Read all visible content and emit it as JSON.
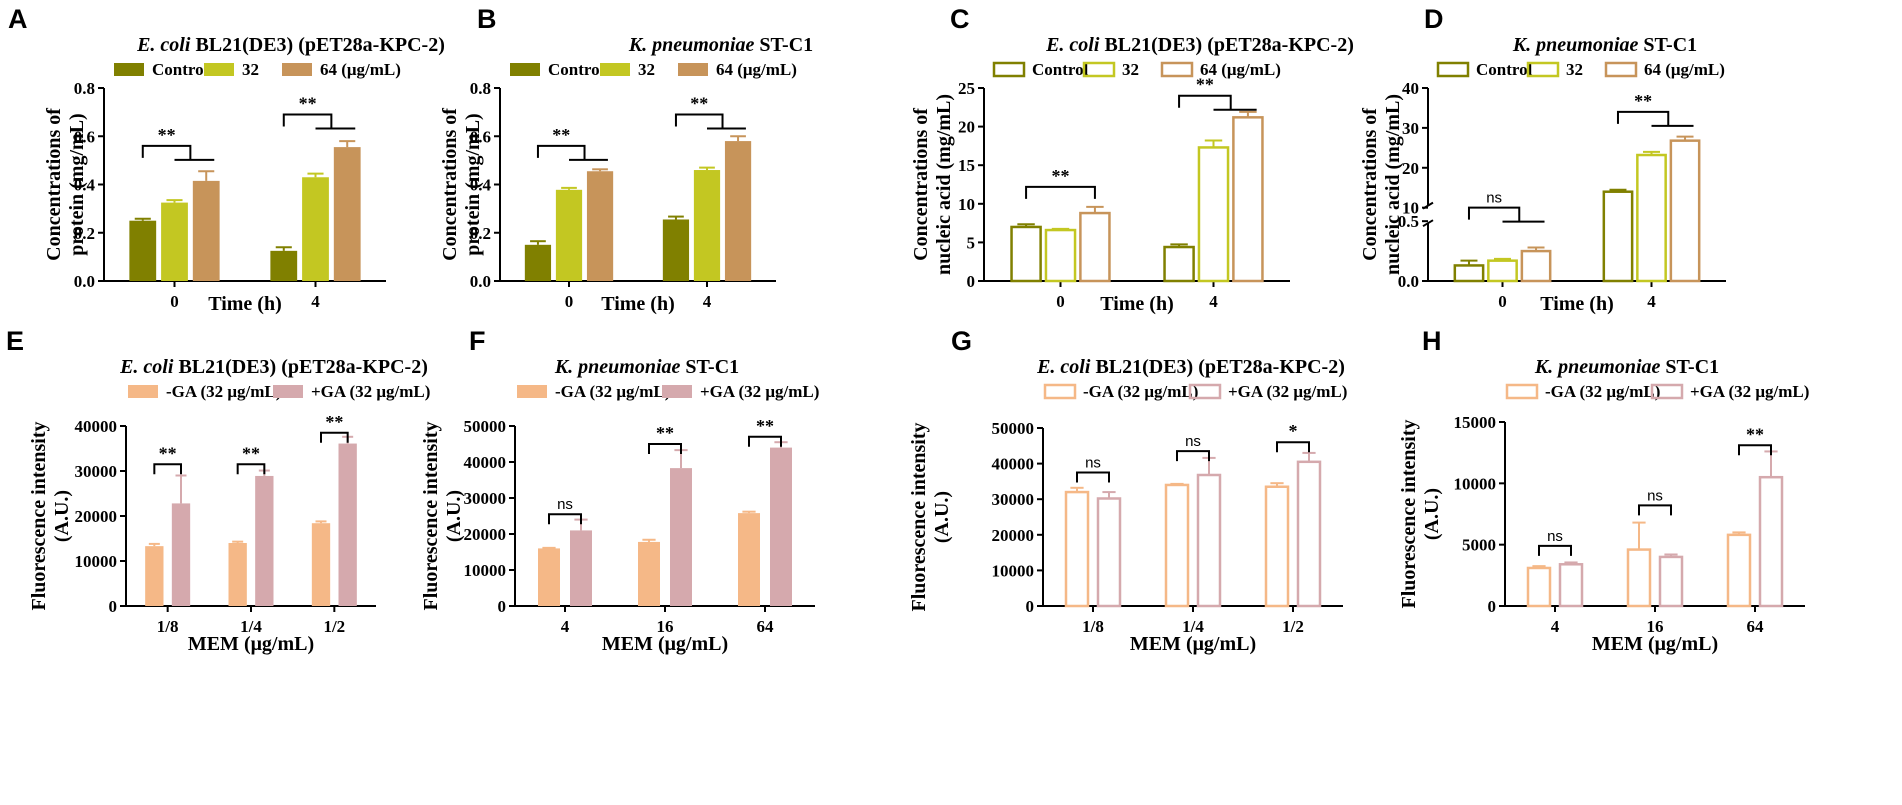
{
  "figure": {
    "colors": {
      "control": "#808000",
      "c32": "#c3c722",
      "c64": "#c7945a",
      "minus_ga": "#f5b887",
      "plus_ga": "#d5a9ad"
    }
  },
  "chart_data": [
    {
      "letter": "A",
      "type": "bar",
      "style": "filled",
      "title_italic": "E. coli",
      "title_rest": " BL21(DE3) (pET28a-KPC-2)",
      "legend": [
        "Control",
        "32",
        "64 (μg/mL)"
      ],
      "categories": [
        "0",
        "4"
      ],
      "series": [
        {
          "name": "Control",
          "values": [
            0.25,
            0.125
          ],
          "errors": [
            0.008,
            0.015
          ]
        },
        {
          "name": "32",
          "values": [
            0.325,
            0.43
          ],
          "errors": [
            0.01,
            0.015
          ]
        },
        {
          "name": "64",
          "values": [
            0.415,
            0.555
          ],
          "errors": [
            0.04,
            0.025
          ]
        }
      ],
      "ylim": [
        0,
        0.8
      ],
      "yticks": [
        "0.0",
        "0.2",
        "0.4",
        "0.6",
        "0.8"
      ],
      "ytick_values": [
        0,
        0.2,
        0.4,
        0.6,
        0.8
      ],
      "ylabel_lines": [
        "Concentrations of",
        "protein (mg/mL)"
      ],
      "xlabel": "Time (h)",
      "significance": [
        {
          "label": "**",
          "group": 0,
          "y": 0.56
        },
        {
          "label": "**",
          "group": 1,
          "y": 0.69
        }
      ]
    },
    {
      "letter": "B",
      "type": "bar",
      "style": "filled",
      "title_italic": "K. pneumoniae",
      "title_rest": " ST-C1",
      "legend": [
        "Control",
        "32",
        "64 (μg/mL)"
      ],
      "categories": [
        "0",
        "4"
      ],
      "series": [
        {
          "name": "Control",
          "values": [
            0.15,
            0.255
          ],
          "errors": [
            0.015,
            0.012
          ]
        },
        {
          "name": "32",
          "values": [
            0.378,
            0.46
          ],
          "errors": [
            0.008,
            0.01
          ]
        },
        {
          "name": "64",
          "values": [
            0.455,
            0.58
          ],
          "errors": [
            0.008,
            0.02
          ]
        }
      ],
      "ylim": [
        0,
        0.8
      ],
      "yticks": [
        "0.0",
        "0.2",
        "0.4",
        "0.6",
        "0.8"
      ],
      "ytick_values": [
        0,
        0.2,
        0.4,
        0.6,
        0.8
      ],
      "ylabel_lines": [
        "Concentrations of",
        "protein (mg/mL)"
      ],
      "xlabel": "Time (h)",
      "significance": [
        {
          "label": "**",
          "group": 0,
          "y": 0.56
        },
        {
          "label": "**",
          "group": 1,
          "y": 0.69
        }
      ]
    },
    {
      "letter": "C",
      "type": "bar",
      "style": "outline",
      "title_italic": "E. coli",
      "title_rest": " BL21(DE3) (pET28a-KPC-2)",
      "legend": [
        "Control",
        "32",
        "64 (μg/mL)"
      ],
      "categories": [
        "0",
        "4"
      ],
      "series": [
        {
          "name": "Control",
          "values": [
            7.0,
            4.4
          ],
          "errors": [
            0.35,
            0.35
          ]
        },
        {
          "name": "32",
          "values": [
            6.6,
            17.3
          ],
          "errors": [
            0.15,
            0.9
          ]
        },
        {
          "name": "64",
          "values": [
            8.8,
            21.2
          ],
          "errors": [
            0.8,
            0.7
          ]
        }
      ],
      "ylim": [
        0,
        25
      ],
      "yticks": [
        "0",
        "5",
        "10",
        "15",
        "20",
        "25"
      ],
      "ytick_values": [
        0,
        5,
        10,
        15,
        20,
        25
      ],
      "ylabel_lines": [
        "Concentrations of",
        "nucleic acid (mg/mL)"
      ],
      "xlabel": "Time (h)",
      "significance": [
        {
          "label": "**",
          "group": 0,
          "y": 12.2,
          "type": "pair"
        },
        {
          "label": "**",
          "group": 1,
          "y": 24.0
        }
      ]
    },
    {
      "letter": "D",
      "type": "bar",
      "style": "outline",
      "broken_axis": true,
      "title_italic": "K. pneumoniae",
      "title_rest": " ST-C1",
      "legend": [
        "Control",
        "32",
        "64 (μg/mL)"
      ],
      "categories": [
        "0",
        "4"
      ],
      "series": [
        {
          "name": "Control",
          "values": [
            0.13,
            14.0
          ],
          "errors": [
            0.04,
            0.5
          ]
        },
        {
          "name": "32",
          "values": [
            0.17,
            23.2
          ],
          "errors": [
            0.015,
            0.8
          ]
        },
        {
          "name": "64",
          "values": [
            0.25,
            26.8
          ],
          "errors": [
            0.03,
            1.0
          ]
        }
      ],
      "ylim": [
        0,
        40
      ],
      "yticks": [
        "0.0",
        "0.5",
        "10",
        "20",
        "30",
        "40"
      ],
      "ytick_values": [
        0,
        0.5,
        10,
        20,
        30,
        40
      ],
      "ylabel_lines": [
        "Concentrations of",
        "nucleic acid (mg/mL)"
      ],
      "xlabel": "Time (h)",
      "significance": [
        {
          "label": "ns",
          "group": 0,
          "y": 0.6
        },
        {
          "label": "**",
          "group": 1,
          "y": 34
        }
      ]
    },
    {
      "letter": "E",
      "type": "bar",
      "style": "filled",
      "title_italic": "E. coli",
      "title_rest": " BL21(DE3) (pET28a-KPC-2)",
      "legend": [
        "-GA (32 μg/mL)",
        "+GA (32 μg/mL)"
      ],
      "categories": [
        "1/8",
        "1/4",
        "1/2"
      ],
      "series": [
        {
          "name": "-GA (32 μg/mL)",
          "values": [
            13300,
            14000,
            18400
          ],
          "errors": [
            500,
            300,
            400
          ]
        },
        {
          "name": "+GA (32 μg/mL)",
          "values": [
            22800,
            28900,
            36100
          ],
          "errors": [
            6200,
            1200,
            1500
          ]
        }
      ],
      "ylim": [
        0,
        40000
      ],
      "yticks": [
        "0",
        "10000",
        "20000",
        "30000",
        "40000"
      ],
      "ytick_values": [
        0,
        10000,
        20000,
        30000,
        40000
      ],
      "ylabel_lines": [
        "Fluorescence intensity",
        "(A.U.)"
      ],
      "xlabel": "MEM (μg/mL)",
      "significance": [
        {
          "label": "**",
          "group": 0,
          "y": 31500
        },
        {
          "label": "**",
          "group": 1,
          "y": 31500
        },
        {
          "label": "**",
          "group": 2,
          "y": 38500
        }
      ]
    },
    {
      "letter": "F",
      "type": "bar",
      "style": "filled",
      "title_italic": "K. pneumoniae",
      "title_rest": " ST-C1",
      "legend": [
        "-GA (32 μg/mL)",
        "+GA (32 μg/mL)"
      ],
      "categories": [
        "4",
        "16",
        "64"
      ],
      "series": [
        {
          "name": "-GA (32 μg/mL)",
          "values": [
            16000,
            17800,
            25800
          ],
          "errors": [
            150,
            600,
            400
          ]
        },
        {
          "name": "+GA (32 μg/mL)",
          "values": [
            21000,
            38300,
            44000
          ],
          "errors": [
            3000,
            5000,
            1500
          ]
        }
      ],
      "ylim": [
        0,
        50000
      ],
      "yticks": [
        "0",
        "10000",
        "20000",
        "30000",
        "40000",
        "50000"
      ],
      "ytick_values": [
        0,
        10000,
        20000,
        30000,
        40000,
        50000
      ],
      "ylabel_lines": [
        "Fluorescence intensity",
        "(A.U.)"
      ],
      "xlabel": "MEM (μg/mL)",
      "significance": [
        {
          "label": "ns",
          "group": 0,
          "y": 25500
        },
        {
          "label": "**",
          "group": 1,
          "y": 45000
        },
        {
          "label": "**",
          "group": 2,
          "y": 47000
        }
      ]
    },
    {
      "letter": "G",
      "type": "bar",
      "style": "outline",
      "title_italic": "E. coli",
      "title_rest": " BL21(DE3) (pET28a-KPC-2)",
      "legend": [
        "-GA (32 μg/mL)",
        "+GA (32 μg/mL)"
      ],
      "categories": [
        "1/8",
        "1/4",
        "1/2"
      ],
      "series": [
        {
          "name": "-GA (32 μg/mL)",
          "values": [
            32000,
            34000,
            33500
          ],
          "errors": [
            1200,
            300,
            1000
          ]
        },
        {
          "name": "+GA (32 μg/mL)",
          "values": [
            30200,
            36800,
            40500
          ],
          "errors": [
            1800,
            4800,
            2500
          ]
        }
      ],
      "ylim": [
        0,
        50000
      ],
      "yticks": [
        "0",
        "10000",
        "20000",
        "30000",
        "40000",
        "50000"
      ],
      "ytick_values": [
        0,
        10000,
        20000,
        30000,
        40000,
        50000
      ],
      "ylabel_lines": [
        "Fluorescence intensity",
        "(A.U.)"
      ],
      "xlabel": "MEM (μg/mL)",
      "significance": [
        {
          "label": "ns",
          "group": 0,
          "y": 37500
        },
        {
          "label": "ns",
          "group": 1,
          "y": 43500
        },
        {
          "label": "*",
          "group": 2,
          "y": 46000
        }
      ]
    },
    {
      "letter": "H",
      "type": "bar",
      "style": "outline",
      "title_italic": "K. pneumoniae",
      "title_rest": " ST-C1",
      "legend": [
        "-GA (32 μg/mL)",
        "+GA (32 μg/mL)"
      ],
      "categories": [
        "4",
        "16",
        "64"
      ],
      "series": [
        {
          "name": "-GA (32 μg/mL)",
          "values": [
            3100,
            4600,
            5800
          ],
          "errors": [
            150,
            2200,
            200
          ]
        },
        {
          "name": "+GA (32 μg/mL)",
          "values": [
            3400,
            4000,
            10500
          ],
          "errors": [
            150,
            200,
            2100
          ]
        }
      ],
      "ylim": [
        0,
        15000
      ],
      "yticks": [
        "0",
        "5000",
        "10000",
        "15000"
      ],
      "ytick_values": [
        0,
        5000,
        10000,
        15000
      ],
      "ylabel_lines": [
        "Fluorescence intensity",
        "(A.U.)"
      ],
      "xlabel": "MEM (μg/mL)",
      "significance": [
        {
          "label": "ns",
          "group": 0,
          "y": 4900
        },
        {
          "label": "ns",
          "group": 1,
          "y": 8200
        },
        {
          "label": "**",
          "group": 2,
          "y": 13100
        }
      ]
    }
  ]
}
